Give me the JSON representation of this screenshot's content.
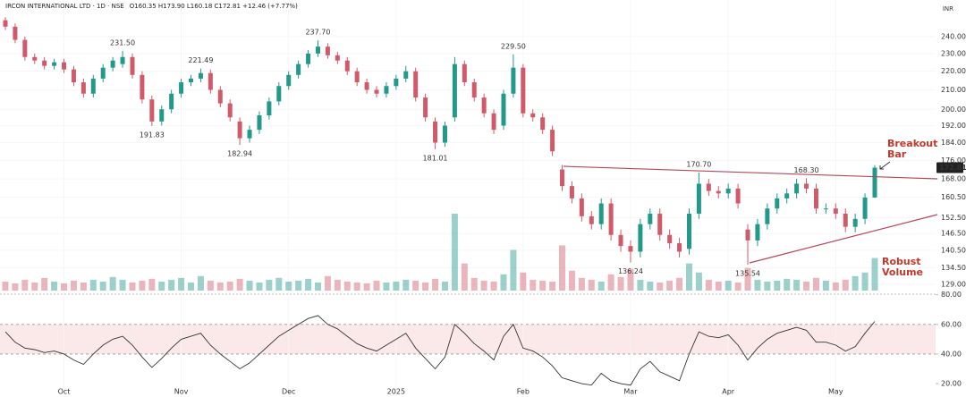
{
  "header": {
    "symbol": "IRCON INTERNATIONAL LTD · 1D · NSE",
    "ohlc": "O160.35 H173.90 L160.18 C172.81 +12.46 (+7.77%)",
    "currency": "INR"
  },
  "chart_data": [
    {
      "type": "candlestick",
      "log": true,
      "grid": true,
      "up_color": "#22998a",
      "down_color": "#d05a6a",
      "xlim": [
        0,
        89
      ],
      "xticks": [
        {
          "value": 6,
          "label": "Oct"
        },
        {
          "value": 18,
          "label": "Nov"
        },
        {
          "value": 29,
          "label": "Dec"
        },
        {
          "value": 40,
          "label": "2025"
        },
        {
          "value": 53,
          "label": "Feb"
        },
        {
          "value": 64,
          "label": "Mar"
        },
        {
          "value": 74,
          "label": "Apr"
        },
        {
          "value": 85,
          "label": "May"
        }
      ],
      "ylim": [
        127,
        263
      ],
      "yticks": [
        {
          "value": 240,
          "label": "240.00"
        },
        {
          "value": 230,
          "label": "230.00"
        },
        {
          "value": 220,
          "label": "220.00"
        },
        {
          "value": 210,
          "label": "210.00"
        },
        {
          "value": 200,
          "label": "200.00"
        },
        {
          "value": 192,
          "label": "192.00"
        },
        {
          "value": 184,
          "label": "184.00"
        },
        {
          "value": 176,
          "label": "176.00"
        },
        {
          "value": 168,
          "label": "168.00"
        },
        {
          "value": 160.5,
          "label": "160.50"
        },
        {
          "value": 152.5,
          "label": "152.50"
        },
        {
          "value": 146.5,
          "label": "146.50"
        },
        {
          "value": 140.5,
          "label": "140.50"
        },
        {
          "value": 134.5,
          "label": "134.50"
        },
        {
          "value": 129,
          "label": "129.00"
        }
      ],
      "open": [
        250,
        246,
        238,
        228,
        226,
        223,
        225,
        221,
        214,
        208,
        216,
        222,
        224,
        228,
        218,
        205,
        194,
        200,
        208,
        214,
        216,
        219,
        210,
        203,
        194,
        186,
        190,
        197,
        204,
        212,
        218,
        224,
        230,
        234,
        229,
        226,
        220,
        214,
        210,
        208,
        212,
        216,
        220,
        206,
        194,
        184,
        196,
        224,
        214,
        206,
        198,
        192,
        208,
        222,
        198,
        196,
        190,
        172,
        165,
        160,
        153,
        150,
        158,
        146,
        142,
        140,
        150,
        154,
        146,
        143,
        141,
        154,
        166,
        163,
        162,
        164,
        148,
        144,
        150,
        156,
        160,
        162,
        166,
        164,
        156,
        156,
        154,
        149,
        152,
        160.35
      ],
      "high": [
        252,
        248,
        240,
        230,
        228,
        227,
        227,
        223,
        216,
        218,
        224,
        228,
        231.5,
        230,
        220,
        207,
        202,
        210,
        216,
        218,
        221.49,
        221,
        212,
        205,
        196,
        192,
        199,
        206,
        214,
        220,
        226,
        232,
        237.7,
        236,
        231,
        228,
        222,
        216,
        212,
        214,
        218,
        223,
        222,
        208,
        196,
        194,
        228,
        226,
        216,
        208,
        200,
        210,
        229.5,
        224,
        200,
        198,
        192,
        174,
        167,
        162,
        155,
        160,
        160,
        148,
        144,
        152,
        156,
        156,
        148,
        145,
        156,
        170.7,
        168,
        165,
        166,
        166,
        150,
        152,
        158,
        162,
        164,
        168,
        168.3,
        166,
        158,
        158,
        156,
        154,
        162,
        173.9
      ],
      "low": [
        244,
        236,
        226,
        224,
        221,
        221,
        219,
        212,
        206,
        206,
        214,
        220,
        222,
        216,
        203,
        191.83,
        192,
        198,
        206,
        212,
        214,
        208,
        201,
        194,
        182.94,
        184,
        188,
        195,
        202,
        210,
        216,
        222,
        228,
        227,
        224,
        218,
        212,
        208,
        206,
        206,
        210,
        214,
        204,
        194,
        181.01,
        182,
        194,
        212,
        204,
        196,
        188,
        190,
        206,
        196,
        194,
        188,
        178,
        163,
        158,
        151,
        148,
        148,
        144,
        140,
        136.24,
        138,
        148,
        144,
        141,
        138,
        139,
        152,
        161,
        160,
        160,
        156,
        135.54,
        142,
        148,
        154,
        158,
        160,
        162,
        154,
        154,
        152,
        147,
        147,
        150,
        160.18
      ],
      "close": [
        246,
        238,
        228,
        226,
        223,
        225,
        221,
        214,
        208,
        216,
        222,
        226,
        228,
        218,
        205,
        194,
        200,
        208,
        214,
        216,
        219,
        210,
        203,
        196,
        186,
        190,
        197,
        204,
        212,
        218,
        224,
        230,
        234,
        229,
        226,
        220,
        214,
        210,
        208,
        212,
        216,
        220,
        206,
        196,
        184,
        192,
        224,
        214,
        206,
        198,
        190,
        208,
        222,
        198,
        196,
        190,
        180,
        165,
        160,
        153,
        150,
        158,
        146,
        142,
        140,
        150,
        154,
        146,
        143,
        140,
        154,
        166,
        163,
        162,
        164,
        158,
        144,
        150,
        156,
        160,
        162,
        166,
        164,
        156,
        156,
        154,
        149,
        152,
        160.35,
        172.81
      ],
      "volume": [
        10,
        8,
        12,
        9,
        14,
        10,
        8,
        11,
        9,
        12,
        10,
        15,
        12,
        9,
        11,
        13,
        10,
        12,
        14,
        9,
        16,
        11,
        9,
        10,
        13,
        11,
        9,
        12,
        14,
        10,
        11,
        13,
        9,
        16,
        12,
        10,
        9,
        8,
        11,
        9,
        10,
        12,
        11,
        9,
        13,
        10,
        85,
        30,
        14,
        11,
        10,
        18,
        45,
        20,
        12,
        11,
        10,
        50,
        22,
        14,
        12,
        10,
        18,
        15,
        24,
        12,
        10,
        9,
        11,
        14,
        30,
        20,
        12,
        10,
        11,
        9,
        25,
        12,
        10,
        11,
        13,
        12,
        10,
        14,
        11,
        9,
        12,
        16,
        20,
        36
      ],
      "annotations": [
        {
          "value": 231.5,
          "label": "231.50"
        },
        {
          "value": 191.83,
          "label": "191.83"
        },
        {
          "value": 221.49,
          "label": "221.49"
        },
        {
          "value": 182.94,
          "label": "182.94"
        },
        {
          "value": 237.7,
          "label": "237.70"
        },
        {
          "value": 181.01,
          "label": "181.01"
        },
        {
          "value": 229.5,
          "label": "229.50"
        },
        {
          "value": 136.24,
          "label": "136.24"
        },
        {
          "value": 170.7,
          "label": "170.70"
        },
        {
          "value": 135.54,
          "label": "135.54"
        },
        {
          "value": 168.3,
          "label": "168.30"
        }
      ],
      "callouts": [
        "Breakout Bar",
        "Robust Volume"
      ]
    },
    {
      "type": "line",
      "color": "#333333",
      "band": [
        40,
        60
      ],
      "band_color": "#fbe9ea",
      "ylim": [
        11,
        81
      ],
      "yticks": [
        {
          "value": 80,
          "label": "80.00"
        },
        {
          "value": 60,
          "label": "60.00"
        },
        {
          "value": 40,
          "label": "40.00"
        },
        {
          "value": 20,
          "label": "20.00"
        }
      ],
      "values": [
        55,
        48,
        44,
        43,
        41,
        42,
        40,
        36,
        33,
        40,
        46,
        50,
        52,
        46,
        38,
        31,
        37,
        44,
        50,
        52,
        54,
        46,
        40,
        35,
        30,
        34,
        40,
        46,
        52,
        56,
        60,
        64,
        66,
        60,
        57,
        52,
        47,
        44,
        42,
        46,
        50,
        54,
        44,
        37,
        30,
        38,
        60,
        54,
        47,
        42,
        36,
        52,
        60,
        44,
        42,
        38,
        32,
        24,
        22,
        20,
        19,
        27,
        22,
        20,
        19,
        30,
        35,
        28,
        25,
        22,
        40,
        55,
        52,
        51,
        53,
        46,
        36,
        44,
        50,
        54,
        56,
        58,
        56,
        48,
        48,
        46,
        42,
        45,
        54,
        62
      ]
    }
  ]
}
